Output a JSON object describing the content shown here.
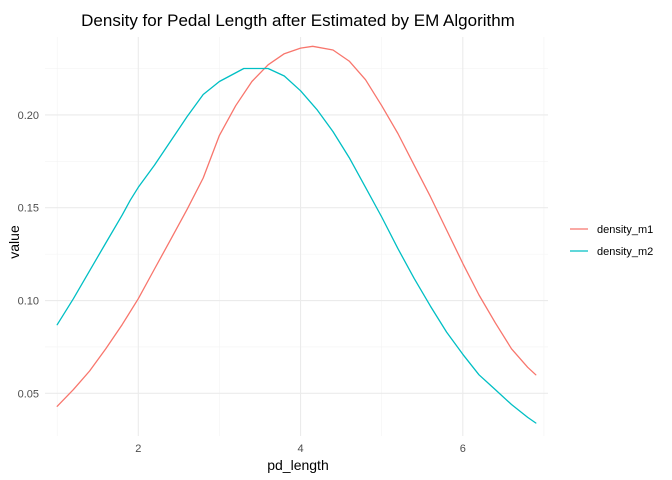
{
  "chart_data": {
    "type": "line",
    "title": "Density for Pedal Length after Estimated by EM Algorithm",
    "xlabel": "pd_length",
    "ylabel": "value",
    "xlim": [
      0.85,
      7.05
    ],
    "ylim": [
      0.027,
      0.242
    ],
    "x_ticks": [
      2,
      4,
      6
    ],
    "x_tick_labels": [
      "2",
      "4",
      "6"
    ],
    "y_ticks": [
      0.05,
      0.1,
      0.15,
      0.2
    ],
    "y_tick_labels": [
      "0.05",
      "0.10",
      "0.15",
      "0.20"
    ],
    "x_minor_ticks": [
      1,
      3,
      5,
      7
    ],
    "y_minor_ticks": [
      0.075,
      0.125,
      0.175,
      0.225
    ],
    "grid": true,
    "legend_position": "right",
    "series": [
      {
        "name": "density_m1",
        "color": "#F8766D",
        "x": [
          1.0,
          1.2,
          1.4,
          1.6,
          1.8,
          2.0,
          2.2,
          2.4,
          2.6,
          2.8,
          3.0,
          3.2,
          3.4,
          3.6,
          3.8,
          4.0,
          4.15,
          4.4,
          4.6,
          4.8,
          5.0,
          5.2,
          5.4,
          5.6,
          5.8,
          6.0,
          6.2,
          6.4,
          6.6,
          6.8,
          6.9
        ],
        "y": [
          0.043,
          0.052,
          0.062,
          0.074,
          0.087,
          0.101,
          0.117,
          0.133,
          0.149,
          0.166,
          0.189,
          0.205,
          0.218,
          0.227,
          0.233,
          0.236,
          0.237,
          0.235,
          0.229,
          0.219,
          0.205,
          0.19,
          0.173,
          0.156,
          0.138,
          0.12,
          0.103,
          0.088,
          0.074,
          0.064,
          0.06
        ]
      },
      {
        "name": "density_m2",
        "color": "#00BFC4",
        "x": [
          1.0,
          1.2,
          1.4,
          1.6,
          1.8,
          1.9,
          2.0,
          2.2,
          2.4,
          2.6,
          2.8,
          3.0,
          3.3,
          3.6,
          3.8,
          4.0,
          4.2,
          4.4,
          4.6,
          4.8,
          5.0,
          5.2,
          5.4,
          5.6,
          5.8,
          6.0,
          6.2,
          6.4,
          6.6,
          6.8,
          6.9
        ],
        "y": [
          0.087,
          0.101,
          0.116,
          0.131,
          0.146,
          0.154,
          0.161,
          0.173,
          0.186,
          0.199,
          0.211,
          0.218,
          0.225,
          0.225,
          0.221,
          0.213,
          0.203,
          0.191,
          0.177,
          0.161,
          0.145,
          0.128,
          0.112,
          0.097,
          0.083,
          0.071,
          0.06,
          0.052,
          0.044,
          0.037,
          0.034
        ]
      }
    ]
  }
}
